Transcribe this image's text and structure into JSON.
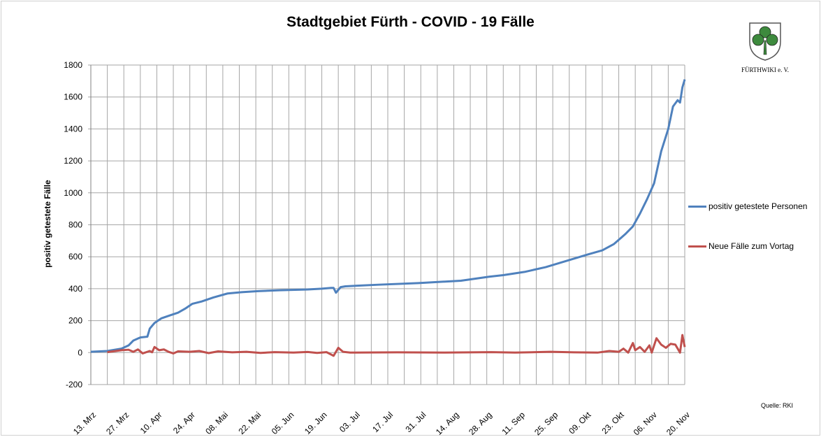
{
  "chart_data": {
    "type": "line",
    "title": "Stadtgebiet Fürth - COVID - 19 Fälle",
    "xlabel": "",
    "ylabel": "positiv getestete Fälle",
    "ylim": [
      -200,
      1800
    ],
    "yticks": [
      -200,
      0,
      200,
      400,
      600,
      800,
      1000,
      1200,
      1400,
      1600,
      1800
    ],
    "xlim_days": [
      0,
      252
    ],
    "x_tick_labels": [
      "13. Mrz",
      "27. Mrz",
      "10. Apr",
      "24. Apr",
      "08. Mai",
      "22. Mai",
      "05. Jun",
      "19. Jun",
      "03. Jul",
      "17. Jul",
      "31. Jul",
      "14. Aug",
      "28. Aug",
      "11. Sep",
      "25. Sep",
      "09. Okt",
      "23. Okt",
      "06. Nov",
      "20. Nov"
    ],
    "x_unit": "days since 13. Mrz",
    "grid": true,
    "legend_placement": "right",
    "series": [
      {
        "name": "positiv getestete Personen",
        "color": "#4f81bd",
        "points": [
          [
            0,
            5
          ],
          [
            7,
            10
          ],
          [
            13,
            25
          ],
          [
            16,
            45
          ],
          [
            18,
            75
          ],
          [
            21,
            95
          ],
          [
            24,
            100
          ],
          [
            25,
            150
          ],
          [
            27,
            185
          ],
          [
            30,
            215
          ],
          [
            34,
            235
          ],
          [
            37,
            250
          ],
          [
            40,
            275
          ],
          [
            43,
            305
          ],
          [
            47,
            320
          ],
          [
            52,
            345
          ],
          [
            58,
            370
          ],
          [
            64,
            378
          ],
          [
            71,
            385
          ],
          [
            80,
            390
          ],
          [
            92,
            395
          ],
          [
            98,
            400
          ],
          [
            102,
            405
          ],
          [
            103,
            405
          ],
          [
            104,
            375
          ],
          [
            106,
            410
          ],
          [
            108,
            415
          ],
          [
            122,
            425
          ],
          [
            139,
            435
          ],
          [
            151,
            445
          ],
          [
            157,
            450
          ],
          [
            169,
            475
          ],
          [
            175,
            485
          ],
          [
            184,
            505
          ],
          [
            193,
            535
          ],
          [
            202,
            575
          ],
          [
            211,
            615
          ],
          [
            217,
            640
          ],
          [
            222,
            680
          ],
          [
            227,
            745
          ],
          [
            230,
            790
          ],
          [
            233,
            870
          ],
          [
            236,
            960
          ],
          [
            239,
            1060
          ],
          [
            242,
            1260
          ],
          [
            245,
            1400
          ],
          [
            247,
            1540
          ],
          [
            249,
            1580
          ],
          [
            250,
            1565
          ],
          [
            251,
            1660
          ],
          [
            252,
            1710
          ]
        ]
      },
      {
        "name": "Neue Fälle zum Vortag",
        "color": "#c0504d",
        "points": [
          [
            7,
            3
          ],
          [
            13,
            15
          ],
          [
            16,
            18
          ],
          [
            18,
            5
          ],
          [
            20,
            20
          ],
          [
            22,
            -5
          ],
          [
            25,
            10
          ],
          [
            26,
            2
          ],
          [
            27,
            35
          ],
          [
            29,
            15
          ],
          [
            31,
            20
          ],
          [
            33,
            5
          ],
          [
            35,
            -5
          ],
          [
            37,
            8
          ],
          [
            42,
            5
          ],
          [
            46,
            10
          ],
          [
            50,
            -3
          ],
          [
            54,
            8
          ],
          [
            60,
            2
          ],
          [
            66,
            5
          ],
          [
            72,
            -2
          ],
          [
            78,
            3
          ],
          [
            86,
            0
          ],
          [
            92,
            4
          ],
          [
            96,
            -2
          ],
          [
            100,
            3
          ],
          [
            103,
            -20
          ],
          [
            105,
            30
          ],
          [
            107,
            5
          ],
          [
            110,
            0
          ],
          [
            130,
            2
          ],
          [
            150,
            0
          ],
          [
            170,
            3
          ],
          [
            180,
            0
          ],
          [
            195,
            5
          ],
          [
            205,
            2
          ],
          [
            215,
            0
          ],
          [
            220,
            10
          ],
          [
            224,
            5
          ],
          [
            226,
            25
          ],
          [
            228,
            0
          ],
          [
            230,
            60
          ],
          [
            231,
            15
          ],
          [
            233,
            35
          ],
          [
            235,
            5
          ],
          [
            237,
            45
          ],
          [
            238,
            0
          ],
          [
            240,
            90
          ],
          [
            242,
            50
          ],
          [
            244,
            30
          ],
          [
            246,
            55
          ],
          [
            248,
            50
          ],
          [
            250,
            0
          ],
          [
            251,
            110
          ],
          [
            252,
            35
          ]
        ]
      }
    ]
  },
  "logo": {
    "text": "FÜRTHWIKI e. V."
  },
  "source": "Quelle: RKI"
}
